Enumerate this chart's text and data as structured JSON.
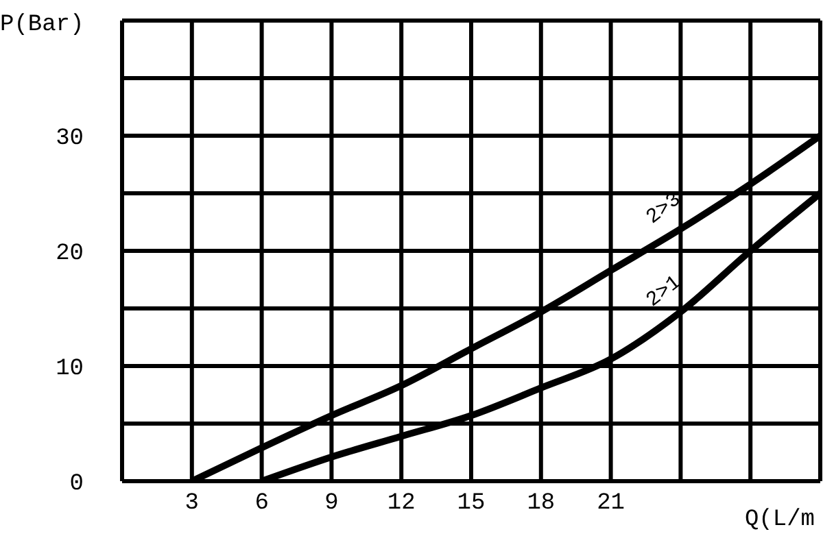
{
  "chart_data": {
    "type": "line",
    "xlabel": "Q(L/m",
    "ylabel": "P(Bar)",
    "x": [
      3,
      6,
      9,
      12,
      15,
      18,
      21,
      24,
      27,
      30
    ],
    "series": [
      {
        "name": "2>3",
        "color": "#000000",
        "values": [
          0,
          2.9,
          5.7,
          8.3,
          11.5,
          14.7,
          18.3,
          21.9,
          25.8,
          30
        ]
      },
      {
        "name": "2>1",
        "color": "#000000",
        "x": [
          6,
          9,
          12,
          15,
          18,
          21,
          24,
          27,
          30
        ],
        "values": [
          0,
          2.1,
          3.9,
          5.7,
          8.1,
          10.6,
          14.7,
          20,
          25
        ]
      }
    ],
    "xlim": [
      0,
      30
    ],
    "xticks": [
      {
        "value": 0,
        "label": null
      },
      3,
      6,
      9,
      12,
      15,
      18,
      21,
      {
        "value": 24,
        "label": null
      },
      {
        "value": 27,
        "label": null
      },
      {
        "value": 30,
        "label": null
      }
    ],
    "ylim": [
      0,
      40
    ],
    "yticks": [
      0,
      {
        "value": 5,
        "label": null
      },
      10,
      {
        "value": 15,
        "label": null
      },
      20,
      {
        "value": 25,
        "label": null
      },
      30,
      {
        "value": 35,
        "label": null
      },
      {
        "value": 40,
        "label": null
      }
    ],
    "grid": true,
    "legend": false,
    "marker": "none",
    "line_style": "solid"
  }
}
